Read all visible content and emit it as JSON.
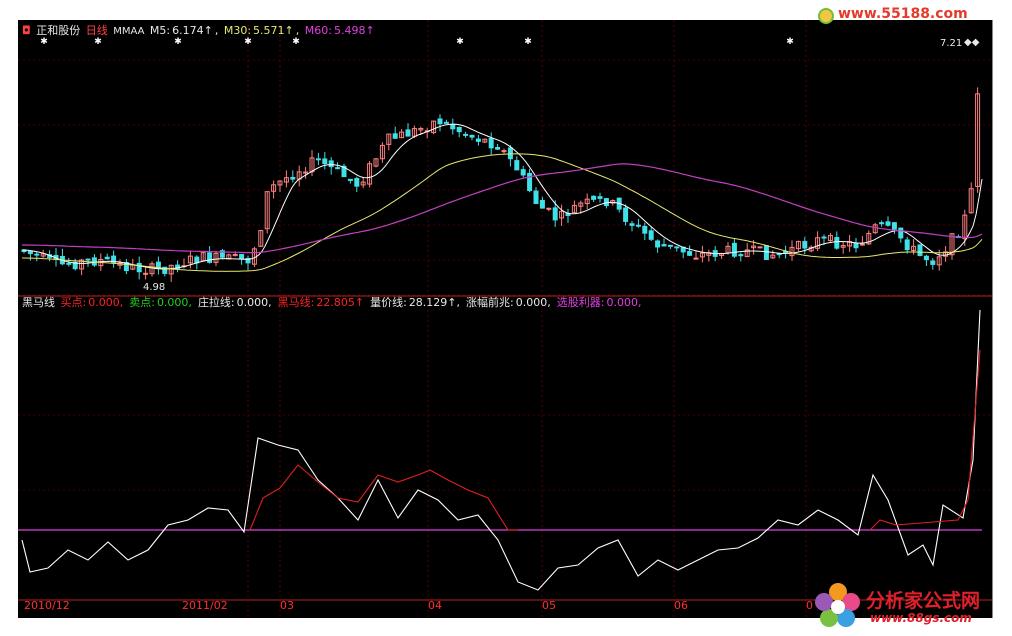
{
  "main": {
    "stock_name": "正和股份",
    "period": "日线",
    "indicator": "MMAA",
    "ma5_label": "M5:",
    "ma5_value": "6.174↑",
    "ma30_label": "M30:",
    "ma30_value": "5.571↑",
    "ma60_label": "M60:",
    "ma60_value": "5.498↑",
    "high_label": "7.21",
    "low_label": "4.98"
  },
  "indicator": {
    "name": "黑马线",
    "items": [
      {
        "label": "买点:",
        "value": "0.000,",
        "color": "#ff2020"
      },
      {
        "label": "卖点:",
        "value": "0.000,",
        "color": "#20d020"
      },
      {
        "label": "庄拉线:",
        "value": "0.000,",
        "color": "#e8e8e8"
      },
      {
        "label": "黑马线:",
        "value": "22.805↑",
        "color": "#ff2020"
      },
      {
        "label": "量价线:",
        "value": "28.129↑,",
        "color": "#e8e8e8"
      },
      {
        "label": "涨幅前兆:",
        "value": "0.000,",
        "color": "#e8e8e8"
      },
      {
        "label": "选股利器:",
        "value": "0.000,",
        "color": "#e040e0"
      }
    ]
  },
  "date_axis": [
    "2010/12",
    "2011/02",
    "03",
    "04",
    "05",
    "06",
    "0"
  ],
  "watermarks": {
    "top_site": "www.55188.com",
    "bottom_name": "分析家公式网",
    "bottom_url": "www.88gs.com"
  },
  "colors": {
    "up": "#ff8080",
    "down": "#40e0e8",
    "ma5": "#ffffff",
    "ma30": "#e8e870",
    "ma60": "#c040c0",
    "grid": "#8b0000",
    "white_line": "#ffffff",
    "red_line": "#e02020",
    "baseline": "#e040e0"
  }
}
